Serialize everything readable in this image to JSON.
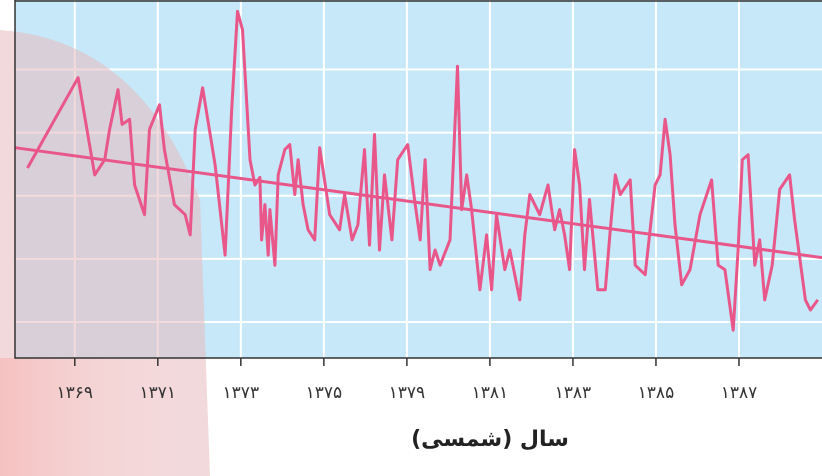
{
  "chart_data": {
    "type": "line",
    "xlabel": "سال (شمسی)",
    "color": "#e9578a",
    "grid": true,
    "x": [
      0.43,
      1.04,
      1.24,
      1.36,
      1.42,
      1.52,
      1.57,
      1.66,
      1.72,
      1.84,
      1.9,
      2.02,
      2.08,
      2.2,
      2.33,
      2.39,
      2.45,
      2.54,
      2.69,
      2.81,
      2.89,
      2.96,
      3.02,
      3.11,
      3.17,
      3.23,
      3.25,
      3.29,
      3.33,
      3.35,
      3.41,
      3.45,
      3.53,
      3.59,
      3.65,
      3.69,
      3.75,
      3.81,
      3.89,
      3.95,
      4.07,
      4.19,
      4.25,
      4.34,
      4.41,
      4.49,
      4.55,
      4.61,
      4.67,
      4.73,
      4.82,
      4.89,
      5.01,
      5.1,
      5.16,
      5.22,
      5.28,
      5.34,
      5.4,
      5.52,
      5.61,
      5.66,
      5.72,
      5.78,
      5.88,
      5.96,
      6.02,
      6.08,
      6.18,
      6.24,
      6.36,
      6.42,
      6.48,
      6.6,
      6.7,
      6.78,
      6.84,
      6.9,
      6.96,
      7.02,
      7.08,
      7.14,
      7.2,
      7.3,
      7.39,
      7.45,
      7.51,
      7.57,
      7.69,
      7.75,
      7.87,
      7.93,
      7.99,
      8.05,
      8.11,
      8.17,
      8.23,
      8.31,
      8.41,
      8.53,
      8.67,
      8.75,
      8.83,
      8.93,
      8.99,
      9.04,
      9.11,
      9.19,
      9.25,
      9.31,
      9.4,
      9.49,
      9.61,
      9.67,
      9.8,
      9.86,
      9.95
    ],
    "values": [
      3.44,
      4.87,
      3.33,
      3.57,
      4.05,
      4.68,
      4.13,
      4.21,
      3.17,
      2.7,
      4.05,
      4.44,
      3.73,
      2.86,
      2.7,
      2.38,
      4.05,
      4.71,
      3.49,
      2.06,
      4.37,
      5.92,
      5.63,
      3.57,
      3.17,
      3.29,
      2.3,
      2.86,
      2.06,
      2.78,
      1.9,
      3.33,
      3.73,
      3.81,
      3.02,
      3.57,
      2.86,
      2.46,
      2.3,
      3.76,
      2.7,
      2.46,
      3.02,
      2.3,
      2.54,
      3.73,
      2.22,
      3.97,
      2.14,
      3.33,
      2.3,
      3.57,
      3.81,
      2.86,
      2.3,
      3.57,
      1.83,
      2.14,
      1.9,
      2.3,
      5.05,
      2.78,
      3.33,
      2.78,
      1.51,
      2.38,
      1.51,
      2.7,
      1.83,
      2.14,
      1.35,
      2.38,
      3.02,
      2.7,
      3.17,
      2.46,
      2.78,
      2.38,
      1.83,
      3.73,
      3.17,
      1.83,
      2.94,
      1.51,
      1.51,
      2.46,
      3.33,
      3.02,
      3.25,
      1.9,
      1.75,
      2.46,
      3.17,
      3.33,
      4.21,
      3.65,
      2.54,
      1.59,
      1.83,
      2.7,
      3.25,
      1.9,
      1.83,
      0.87,
      2.14,
      3.57,
      3.65,
      1.9,
      2.3,
      1.35,
      1.9,
      3.1,
      3.33,
      2.62,
      1.35,
      1.19,
      1.35
    ],
    "trend": {
      "x": [
        0.28,
        10.0
      ],
      "values": [
        3.76,
        2.02
      ]
    },
    "xlim": [
      0.28,
      10.0
    ],
    "xticks": [
      {
        "value": 1,
        "label": "۱۳۶۹"
      },
      {
        "value": 2,
        "label": "۱۳۷۱"
      },
      {
        "value": 3,
        "label": "۱۳۷۳"
      },
      {
        "value": 4,
        "label": "۱۳۷۵"
      },
      {
        "value": 5,
        "label": "۱۳۷۹"
      },
      {
        "value": 6,
        "label": "۱۳۸۱"
      },
      {
        "value": 7,
        "label": "۱۳۸۳"
      },
      {
        "value": 8,
        "label": "۱۳۸۵"
      },
      {
        "value": 9,
        "label": "۱۳۸۷"
      }
    ],
    "ylim": [
      0.43,
      6.1
    ],
    "yticks": [
      1,
      2,
      3,
      4,
      5
    ]
  }
}
